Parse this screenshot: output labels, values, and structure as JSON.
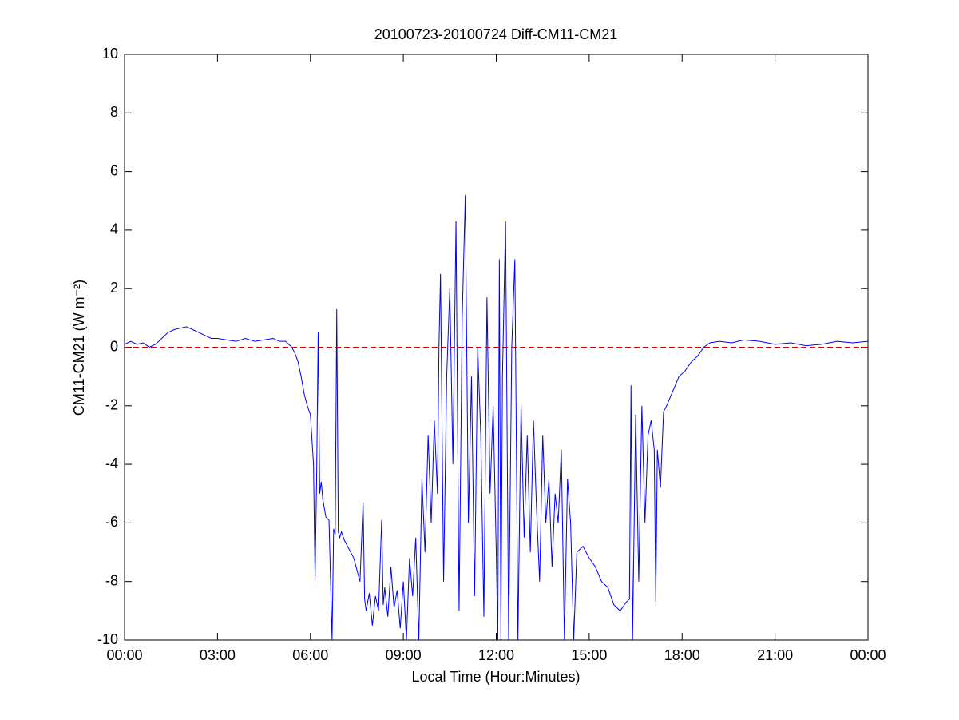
{
  "chart_data": {
    "type": "line",
    "title": "20100723-20100724 Diff-CM11-CM21",
    "x_label": "Local Time (Hour:Minutes)",
    "y_label": "CM11-CM21 (W m⁻²)",
    "color": "#0000ff",
    "x": [
      0,
      0.2,
      0.4,
      0.6,
      0.8,
      1.0,
      1.2,
      1.4,
      1.6,
      1.8,
      2.0,
      2.2,
      2.4,
      2.6,
      2.8,
      3.0,
      3.3,
      3.6,
      3.9,
      4.2,
      4.5,
      4.8,
      5.0,
      5.2,
      5.4,
      5.5,
      5.6,
      5.7,
      5.8,
      5.9,
      6.0,
      6.1,
      6.15,
      6.2,
      6.25,
      6.3,
      6.35,
      6.4,
      6.5,
      6.6,
      6.7,
      6.75,
      6.8,
      6.85,
      6.9,
      6.95,
      7.0,
      7.1,
      7.2,
      7.3,
      7.4,
      7.5,
      7.6,
      7.7,
      7.75,
      7.8,
      7.9,
      8.0,
      8.1,
      8.2,
      8.3,
      8.35,
      8.4,
      8.5,
      8.6,
      8.7,
      8.8,
      8.9,
      9.0,
      9.1,
      9.2,
      9.3,
      9.4,
      9.5,
      9.6,
      9.7,
      9.8,
      9.9,
      10.0,
      10.1,
      10.15,
      10.2,
      10.3,
      10.4,
      10.5,
      10.6,
      10.7,
      10.8,
      10.9,
      11.0,
      11.1,
      11.2,
      11.3,
      11.4,
      11.5,
      11.6,
      11.7,
      11.8,
      11.9,
      12.0,
      12.05,
      12.1,
      12.15,
      12.2,
      12.3,
      12.4,
      12.5,
      12.6,
      12.7,
      12.8,
      12.9,
      13.0,
      13.1,
      13.2,
      13.3,
      13.4,
      13.5,
      13.6,
      13.7,
      13.8,
      13.9,
      14.0,
      14.1,
      14.2,
      14.3,
      14.4,
      14.5,
      14.6,
      14.8,
      15.0,
      15.2,
      15.4,
      15.6,
      15.8,
      16.0,
      16.2,
      16.3,
      16.35,
      16.4,
      16.5,
      16.6,
      16.7,
      16.8,
      16.9,
      17.0,
      17.1,
      17.15,
      17.2,
      17.3,
      17.4,
      17.5,
      17.7,
      17.9,
      18.1,
      18.3,
      18.5,
      18.7,
      18.9,
      19.2,
      19.6,
      20.0,
      20.5,
      21.0,
      21.5,
      22.0,
      22.5,
      23.0,
      23.5,
      24.0
    ],
    "values": [
      0.1,
      0.2,
      0.1,
      0.15,
      0.0,
      0.1,
      0.3,
      0.5,
      0.6,
      0.65,
      0.7,
      0.6,
      0.5,
      0.4,
      0.3,
      0.3,
      0.25,
      0.2,
      0.3,
      0.2,
      0.25,
      0.3,
      0.2,
      0.2,
      0.0,
      -0.2,
      -0.5,
      -1.0,
      -1.6,
      -2.0,
      -2.3,
      -4.0,
      -7.9,
      -4.5,
      0.5,
      -5.0,
      -4.6,
      -5.2,
      -5.8,
      -5.9,
      -10,
      -6.2,
      -6.4,
      1.3,
      -6.3,
      -6.5,
      -6.3,
      -6.6,
      -6.8,
      -7.0,
      -7.2,
      -7.6,
      -8.0,
      -5.3,
      -8.6,
      -9.0,
      -8.4,
      -9.5,
      -8.5,
      -9.0,
      -5.9,
      -8.8,
      -8.2,
      -9.2,
      -7.5,
      -8.9,
      -8.3,
      -9.6,
      -8.0,
      -10,
      -7.2,
      -8.5,
      -6.5,
      -10,
      -4.5,
      -7.0,
      -3.0,
      -6.0,
      -2.5,
      -5.0,
      0.0,
      2.5,
      -8.0,
      -1.0,
      2.0,
      -4.0,
      4.3,
      -9.0,
      1.0,
      5.2,
      -6.0,
      -1.0,
      -8.5,
      0.0,
      -3.0,
      -9.2,
      1.7,
      -5.0,
      -2.0,
      -7.0,
      -10,
      3.0,
      -10,
      -1.0,
      4.3,
      -10,
      0.0,
      3.0,
      -10,
      -2.0,
      -6.5,
      -3.0,
      -7.0,
      -2.5,
      -5.5,
      -8.0,
      -3.0,
      -6.0,
      -4.5,
      -7.5,
      -5.0,
      -6.0,
      -3.5,
      -10,
      -4.5,
      -6.0,
      -10,
      -7.0,
      -6.8,
      -7.2,
      -7.5,
      -8.0,
      -8.2,
      -8.8,
      -9.0,
      -8.7,
      -8.6,
      -1.3,
      -10,
      -2.3,
      -8.0,
      -2.0,
      -6.0,
      -3.0,
      -2.5,
      -3.5,
      -8.7,
      -3.5,
      -4.8,
      -2.2,
      -2.0,
      -1.5,
      -1.0,
      -0.8,
      -0.5,
      -0.3,
      0.0,
      0.15,
      0.2,
      0.15,
      0.25,
      0.2,
      0.1,
      0.15,
      0.05,
      0.1,
      0.2,
      0.15,
      0.2
    ],
    "xlim": [
      0,
      24
    ],
    "xticks": [
      {
        "value": 0,
        "label": "00:00"
      },
      {
        "value": 3,
        "label": "03:00"
      },
      {
        "value": 6,
        "label": "06:00"
      },
      {
        "value": 9,
        "label": "09:00"
      },
      {
        "value": 12,
        "label": "12:00"
      },
      {
        "value": 15,
        "label": "15:00"
      },
      {
        "value": 18,
        "label": "18:00"
      },
      {
        "value": 21,
        "label": "21:00"
      },
      {
        "value": 24,
        "label": "00:00"
      }
    ],
    "ylim": [
      -10,
      10
    ],
    "yticks": [
      -10,
      -8,
      -6,
      -4,
      -2,
      0,
      2,
      4,
      6,
      8,
      10
    ],
    "reference_line": {
      "value": 0,
      "color": "#cc0000",
      "style": "dashed"
    },
    "grid": false
  }
}
